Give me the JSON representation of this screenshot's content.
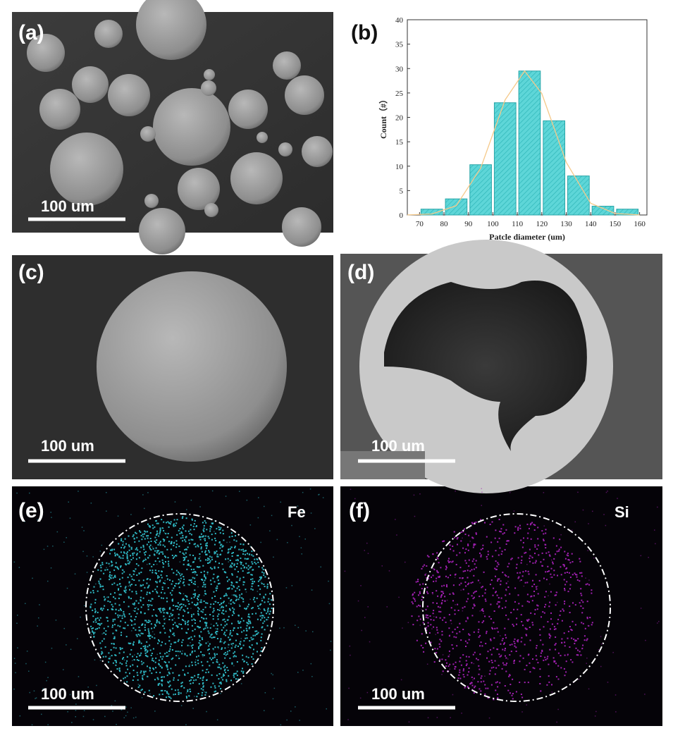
{
  "panels": [
    {
      "label": "(a)",
      "scale_bar": "100 um"
    },
    {
      "label": "(b)"
    },
    {
      "label": "(c)",
      "scale_bar": "100 um"
    },
    {
      "label": "(d)",
      "scale_bar": "100 um"
    },
    {
      "label": "(e)",
      "scale_bar": "100 um",
      "element": "Fe"
    },
    {
      "label": "(f)",
      "scale_bar": "100 um",
      "element": "Si"
    }
  ],
  "chart_data": {
    "type": "histogram",
    "xlabel": "Patcle diameter (um)",
    "ylabel": "Count（#）",
    "bins": [
      70,
      80,
      90,
      100,
      110,
      120,
      130,
      140,
      150,
      160
    ],
    "values": [
      1.2,
      3.3,
      10.3,
      23,
      29.5,
      19.3,
      8,
      1.8,
      1.2
    ],
    "color": "#5ed6d8",
    "xlim": [
      65,
      163
    ],
    "xticks": [
      70,
      80,
      90,
      100,
      110,
      120,
      130,
      140,
      150,
      160
    ],
    "ylim": [
      0,
      40
    ],
    "yticks": [
      0,
      5,
      10,
      15,
      20,
      25,
      30,
      35,
      40
    ],
    "fit": {
      "color": "#f5c98a",
      "x": [
        65,
        75,
        85,
        95,
        105,
        113,
        120,
        130,
        140,
        150,
        160
      ],
      "values": [
        0.01,
        0.2,
        1.9,
        9.6,
        23.6,
        29.5,
        24.9,
        10.8,
        2.4,
        0.3,
        0.01
      ]
    }
  }
}
